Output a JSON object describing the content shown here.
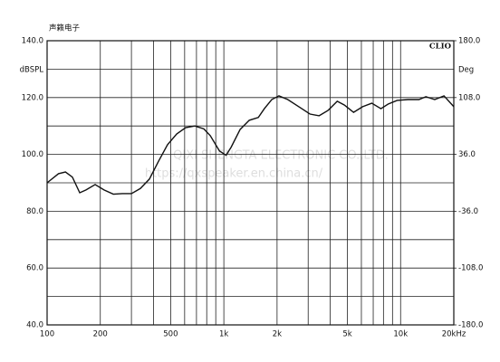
{
  "chart_data": {
    "type": "line",
    "title": "声籁电子",
    "brand": "CLIO",
    "ylabel": "dBSPL",
    "y2label": "Deg",
    "annotations": [
      "QIXI SHENGTA ELECTRONIC CO.,LTD.",
      "https://qxspeaker.en.china.cn/"
    ],
    "xscale": "log",
    "grid": true,
    "xlim": [
      100,
      20000
    ],
    "xticks": [
      100,
      200,
      500,
      {
        "value": 1000,
        "label": "1k"
      },
      {
        "value": 2000,
        "label": "2k"
      },
      {
        "value": 5000,
        "label": "5k"
      },
      {
        "value": 10000,
        "label": "10k"
      },
      {
        "value": 20000,
        "label": "20kHz"
      }
    ],
    "xgrid_minor": [
      300,
      400,
      600,
      700,
      800,
      900,
      3000,
      4000,
      6000,
      7000,
      8000,
      9000
    ],
    "ylim": [
      40,
      140
    ],
    "yticks": [
      {
        "value": 40,
        "label": "40.0"
      },
      {
        "value": 60,
        "label": "60.0"
      },
      {
        "value": 80,
        "label": "80.0"
      },
      {
        "value": 100,
        "label": "100.0"
      },
      {
        "value": 120,
        "label": "120.0"
      },
      {
        "value": 140,
        "label": "140.0"
      }
    ],
    "ygrid_minor": [
      50,
      70,
      90,
      110,
      130
    ],
    "y2lim": [
      -180,
      180
    ],
    "y2ticks": [
      {
        "value": -180,
        "label": "-180.0"
      },
      {
        "value": -108,
        "label": "-108.0"
      },
      {
        "value": -36,
        "label": "-36.0"
      },
      {
        "value": 36,
        "label": "36.0"
      },
      {
        "value": 108,
        "label": "108.0"
      },
      {
        "value": 180,
        "label": "180.0"
      }
    ],
    "x": [
      100,
      116,
      127,
      139,
      153,
      166,
      187,
      210,
      237,
      266,
      300,
      337,
      379,
      427,
      480,
      541,
      608,
      685,
      770,
      838,
      945,
      1030,
      1099,
      1237,
      1392,
      1567,
      1695,
      1866,
      2050,
      2300,
      2650,
      3070,
      3460,
      3890,
      4380,
      4800,
      5420,
      6100,
      6870,
      7740,
      8500,
      9560,
      11000,
      12700,
      13900,
      15600,
      17600,
      20000
    ],
    "series": [
      {
        "name": "SPL",
        "color": "#111111",
        "values": [
          90,
          93.2,
          93.8,
          92,
          86.5,
          87.5,
          89.4,
          87.5,
          86,
          86.2,
          86.2,
          88,
          91.3,
          97.6,
          103.4,
          107.2,
          109.4,
          110,
          109,
          106.6,
          101.2,
          99.7,
          102.5,
          108.8,
          112,
          113,
          116.1,
          119.3,
          120.6,
          119.3,
          116.8,
          114.2,
          113.6,
          115.5,
          118.7,
          117.4,
          114.8,
          116.8,
          118,
          116.1,
          117.7,
          119,
          119.3,
          119.3,
          120.3,
          119.3,
          120.6,
          116.8
        ]
      }
    ]
  }
}
